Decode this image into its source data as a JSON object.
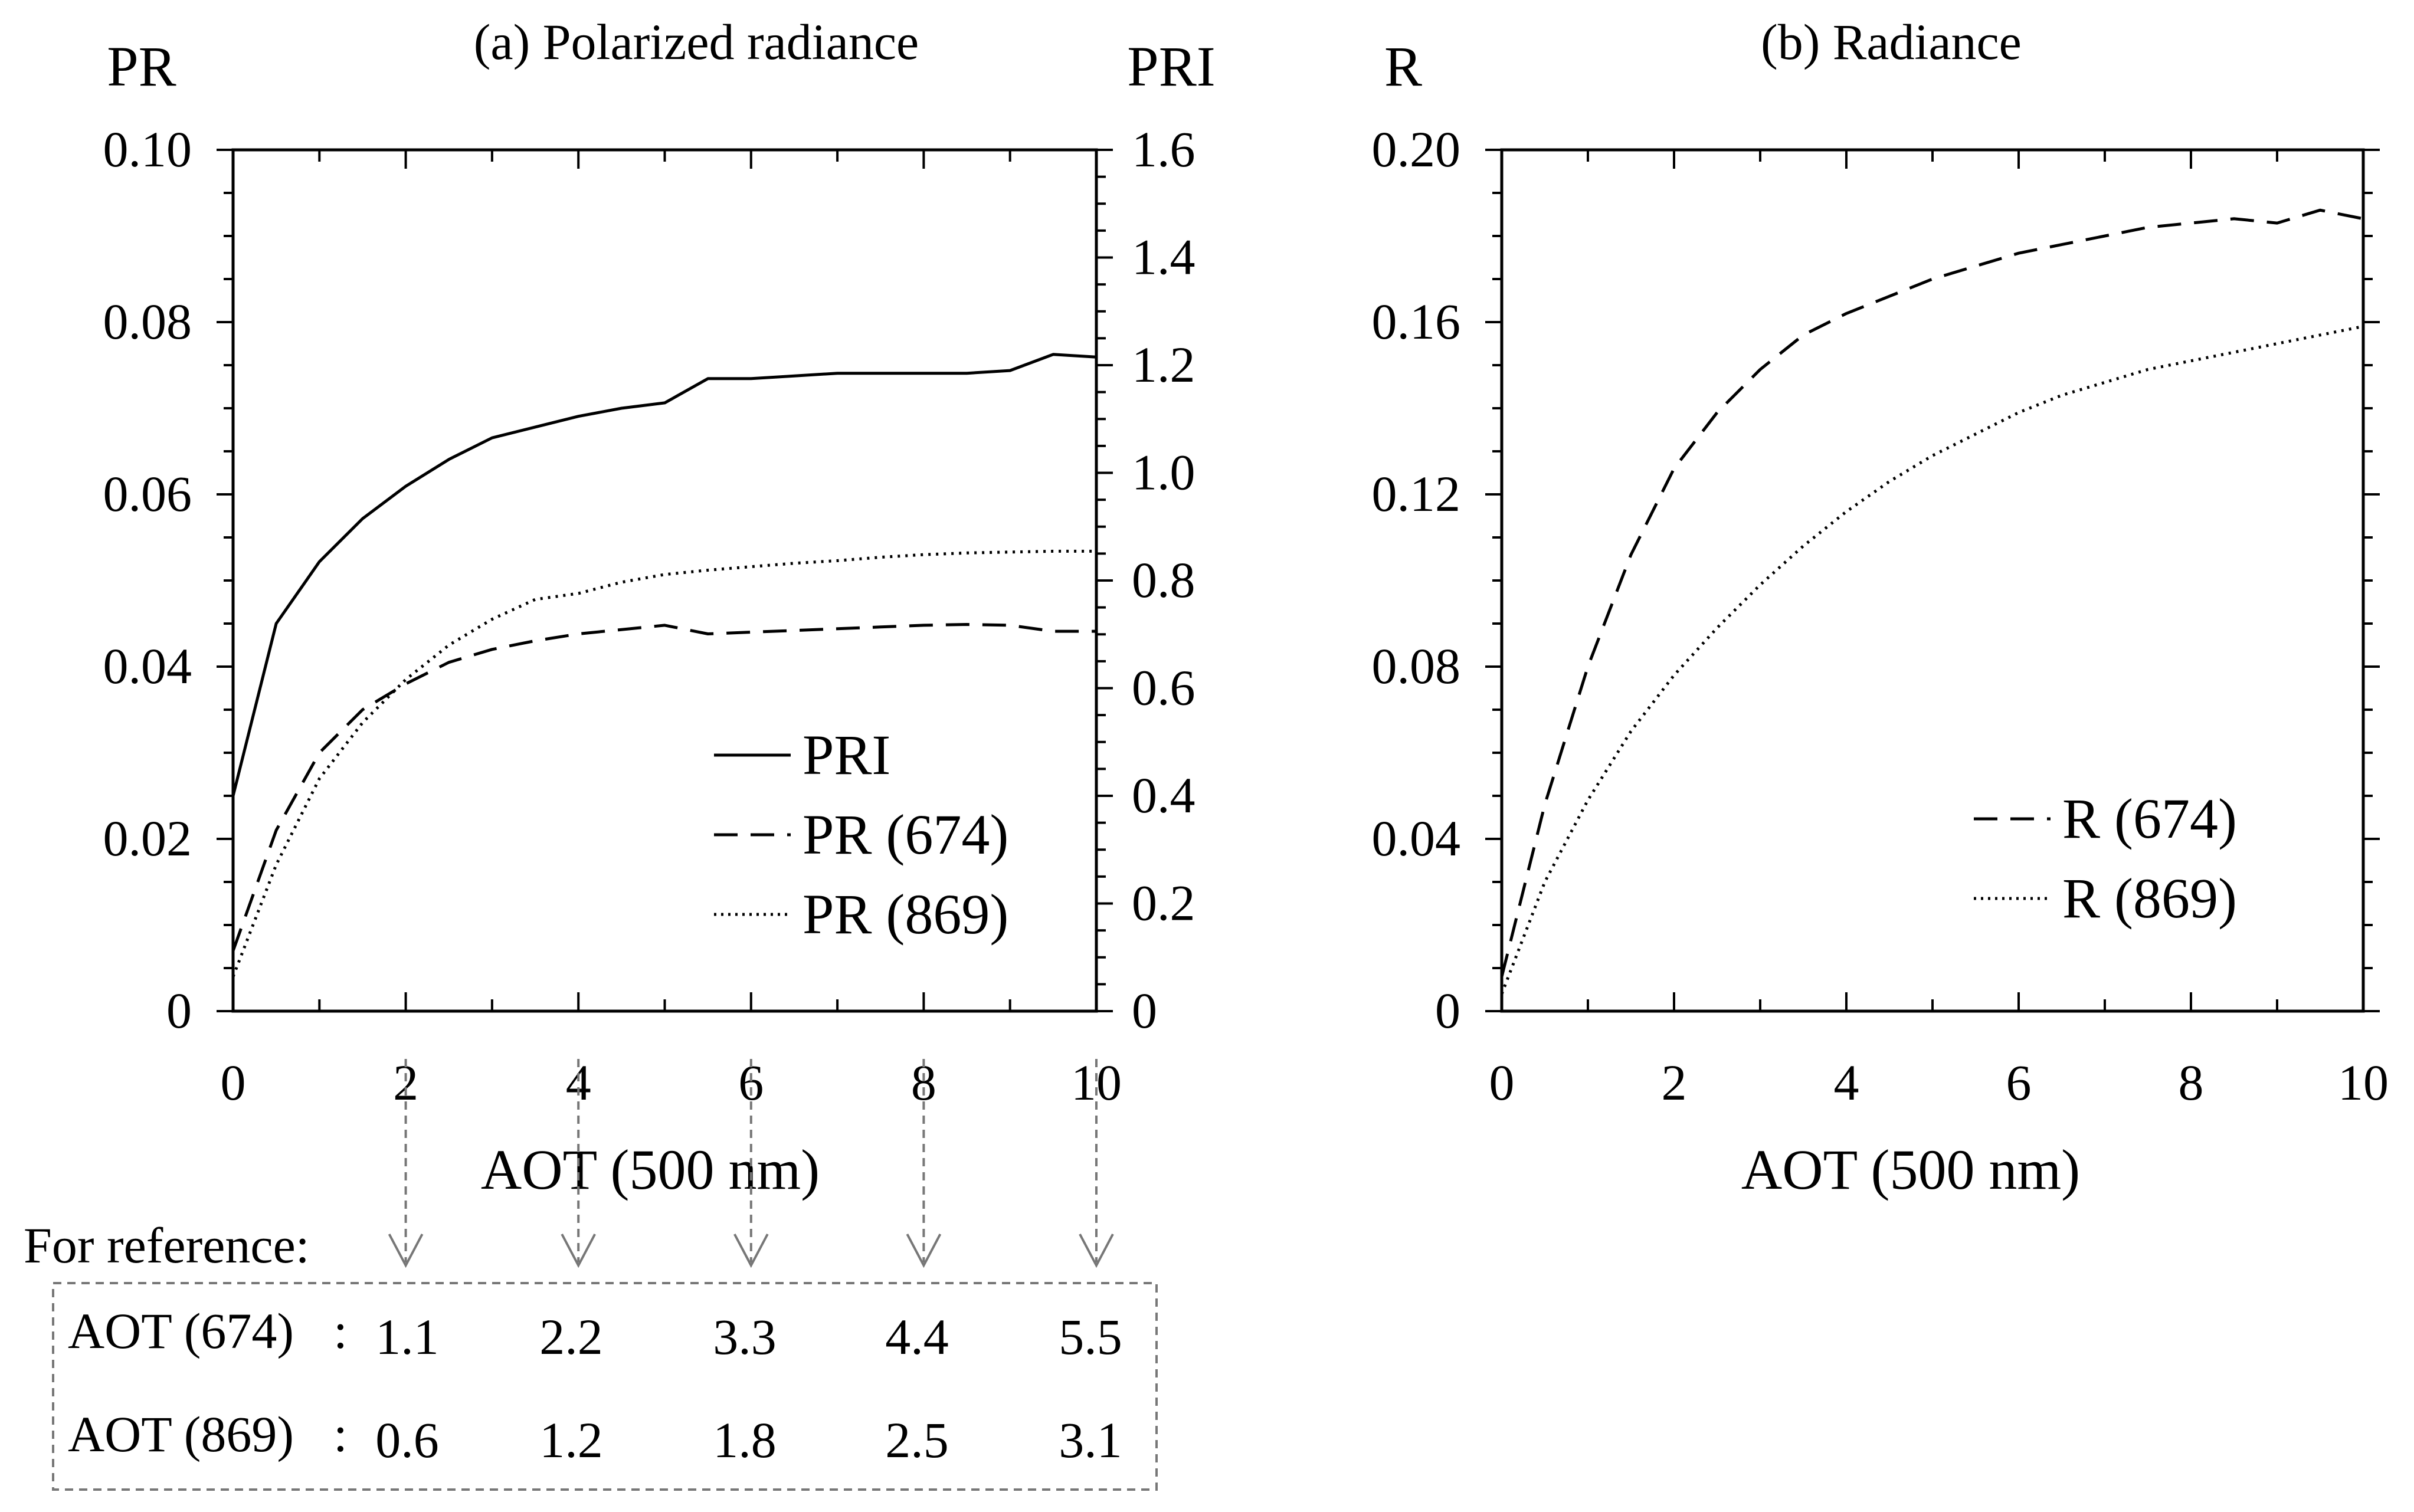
{
  "chart_data": [
    {
      "type": "line",
      "title": "(a) Polarized radiance",
      "xlabel": "AOT (500 nm)",
      "ylabel": "PR",
      "y2label": "PRI",
      "xlim": [
        0,
        10
      ],
      "ylim": [
        0,
        0.1
      ],
      "y2lim": [
        0,
        1.6
      ],
      "x_ticks": [
        "0",
        "2",
        "4",
        "6",
        "8",
        "10"
      ],
      "y_ticks": [
        "0",
        "0.02",
        "0.04",
        "0.06",
        "0.08",
        "0.10"
      ],
      "y2_ticks": [
        "0",
        "0.2",
        "0.4",
        "0.6",
        "0.8",
        "1.0",
        "1.2",
        "1.4",
        "1.6"
      ],
      "legend_position": "lower-right",
      "series": [
        {
          "name": "PRI",
          "axis": "right",
          "style": "solid",
          "x": [
            0,
            0.5,
            1,
            1.5,
            2,
            2.5,
            3,
            3.5,
            4,
            4.5,
            5,
            5.5,
            6,
            6.5,
            7,
            7.5,
            8,
            8.5,
            9,
            9.5,
            10
          ],
          "values": [
            0.4,
            0.72,
            0.835,
            0.915,
            0.975,
            1.025,
            1.065,
            1.085,
            1.105,
            1.12,
            1.13,
            1.175,
            1.175,
            1.18,
            1.185,
            1.185,
            1.185,
            1.185,
            1.19,
            1.22,
            1.215
          ]
        },
        {
          "name": "PR (674)",
          "axis": "left",
          "style": "dashed",
          "x": [
            0,
            0.5,
            1,
            1.5,
            2,
            2.5,
            3,
            3.5,
            4,
            4.5,
            5,
            5.5,
            6,
            6.5,
            7,
            7.5,
            8,
            8.5,
            9,
            9.5,
            10
          ],
          "values": [
            0.007,
            0.021,
            0.03,
            0.035,
            0.038,
            0.0405,
            0.042,
            0.043,
            0.0438,
            0.0443,
            0.0448,
            0.0438,
            0.044,
            0.0442,
            0.0444,
            0.0446,
            0.0448,
            0.0449,
            0.0448,
            0.0441,
            0.0441
          ]
        },
        {
          "name": "PR (869)",
          "axis": "left",
          "style": "dotted",
          "x": [
            0,
            0.5,
            1,
            1.5,
            2,
            2.5,
            3,
            3.5,
            4,
            4.5,
            5,
            5.5,
            6,
            6.5,
            7,
            7.5,
            8,
            8.5,
            9,
            9.5,
            10
          ],
          "values": [
            0.004,
            0.017,
            0.027,
            0.0335,
            0.0385,
            0.0425,
            0.0455,
            0.0478,
            0.0485,
            0.0498,
            0.0507,
            0.0512,
            0.0516,
            0.052,
            0.0523,
            0.0527,
            0.053,
            0.0532,
            0.0533,
            0.0534,
            0.0534
          ]
        }
      ],
      "legend": [
        "PRI",
        "PR (674)",
        "PR (869)"
      ]
    },
    {
      "type": "line",
      "title": "(b) Radiance",
      "xlabel": "AOT (500 nm)",
      "ylabel": "R",
      "xlim": [
        0,
        10
      ],
      "ylim": [
        0,
        0.2
      ],
      "x_ticks": [
        "0",
        "2",
        "4",
        "6",
        "8",
        "10"
      ],
      "y_ticks": [
        "0",
        "0.04",
        "0.08",
        "0.12",
        "0.16",
        "0.20"
      ],
      "legend_position": "lower-right",
      "series": [
        {
          "name": "R (674)",
          "style": "dashed",
          "x": [
            0,
            0.5,
            1,
            1.5,
            2,
            2.5,
            3,
            3.5,
            4,
            4.5,
            5,
            5.5,
            6,
            6.5,
            7,
            7.5,
            8,
            8.5,
            9,
            9.5,
            10
          ],
          "values": [
            0.008,
            0.048,
            0.08,
            0.106,
            0.126,
            0.139,
            0.149,
            0.157,
            0.162,
            0.166,
            0.17,
            0.173,
            0.176,
            0.178,
            0.18,
            0.182,
            0.183,
            0.184,
            0.183,
            0.186,
            0.184
          ]
        },
        {
          "name": "R (869)",
          "style": "dotted",
          "x": [
            0,
            0.5,
            1,
            1.5,
            2,
            2.5,
            3,
            3.5,
            4,
            4.5,
            5,
            5.5,
            6,
            6.5,
            7,
            7.5,
            8,
            8.5,
            9,
            9.5,
            10
          ],
          "values": [
            0.004,
            0.03,
            0.049,
            0.065,
            0.078,
            0.089,
            0.099,
            0.108,
            0.116,
            0.123,
            0.129,
            0.134,
            0.139,
            0.143,
            0.146,
            0.149,
            0.151,
            0.153,
            0.155,
            0.157,
            0.159
          ]
        }
      ],
      "legend": [
        "R (674)",
        "R (869)"
      ]
    }
  ],
  "reference": {
    "heading": "For reference:",
    "arrow_aot": [
      2,
      4,
      6,
      8,
      10
    ],
    "rows": [
      {
        "label": "AOT (674)",
        "separator": ":",
        "values": [
          "1.1",
          "2.2",
          "3.3",
          "4.4",
          "5.5"
        ]
      },
      {
        "label": "AOT (869)",
        "separator": ":",
        "values": [
          "0.6",
          "1.2",
          "1.8",
          "2.5",
          "3.1"
        ]
      }
    ]
  }
}
